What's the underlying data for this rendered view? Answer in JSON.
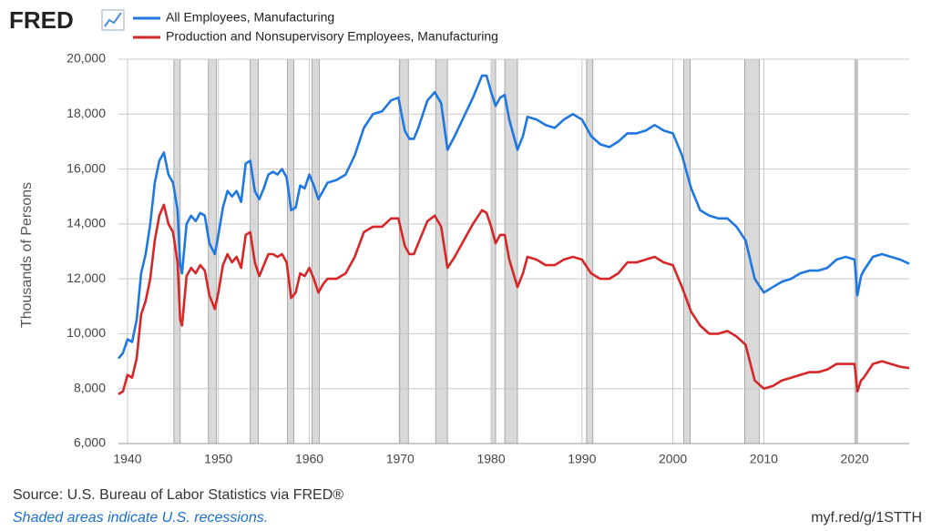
{
  "chart_data": {
    "type": "line",
    "logo": "FRED",
    "ylabel": "Thousands of Persons",
    "source": "Source: U.S. Bureau of Labor Statistics via FRED®",
    "note": "Shaded areas indicate U.S. recessions.",
    "url": "myf.red/g/1STTH",
    "grid": true,
    "xlim": [
      1939,
      2026
    ],
    "ylim": [
      6000,
      20000
    ],
    "xticks": [
      1940,
      1950,
      1960,
      1970,
      1980,
      1990,
      2000,
      2010,
      2020
    ],
    "yticks": [
      {
        "value": 6000,
        "label": "6,000"
      },
      {
        "value": 8000,
        "label": "8,000"
      },
      {
        "value": 10000,
        "label": "10,000"
      },
      {
        "value": 12000,
        "label": "12,000"
      },
      {
        "value": 14000,
        "label": "14,000"
      },
      {
        "value": 16000,
        "label": "16,000"
      },
      {
        "value": 18000,
        "label": "18,000"
      },
      {
        "value": 20000,
        "label": "20,000"
      }
    ],
    "recessions": [
      [
        1945.1,
        1945.8
      ],
      [
        1948.9,
        1949.8
      ],
      [
        1953.5,
        1954.4
      ],
      [
        1957.6,
        1958.3
      ],
      [
        1960.3,
        1961.1
      ],
      [
        1969.9,
        1970.9
      ],
      [
        1973.9,
        1975.2
      ],
      [
        1980.0,
        1980.5
      ],
      [
        1981.5,
        1982.9
      ],
      [
        1990.5,
        1991.2
      ],
      [
        2001.2,
        2001.9
      ],
      [
        2007.9,
        2009.5
      ],
      [
        2020.1,
        2020.3
      ]
    ],
    "x": [
      1939,
      1939.5,
      1940,
      1940.5,
      1941,
      1941.5,
      1942,
      1942.5,
      1943,
      1943.5,
      1944,
      1944.5,
      1945,
      1945.5,
      1945.8,
      1946,
      1946.5,
      1947,
      1947.5,
      1948,
      1948.5,
      1949,
      1949.6,
      1950,
      1950.5,
      1951,
      1951.5,
      1952,
      1952.5,
      1953,
      1953.5,
      1954,
      1954.5,
      1955,
      1955.5,
      1956,
      1956.5,
      1957,
      1957.5,
      1958,
      1958.5,
      1959,
      1959.5,
      1960,
      1960.5,
      1961,
      1961.5,
      1962,
      1963,
      1964,
      1965,
      1966,
      1967,
      1968,
      1969,
      1969.8,
      1970.5,
      1971,
      1971.5,
      1972,
      1973,
      1973.8,
      1974.5,
      1975.2,
      1976,
      1977,
      1978,
      1979,
      1979.5,
      1980,
      1980.5,
      1981,
      1981.5,
      1982,
      1982.9,
      1983.5,
      1984,
      1985,
      1986,
      1987,
      1988,
      1989,
      1990,
      1991,
      1992,
      1993,
      1994,
      1995,
      1996,
      1997,
      1998,
      1999,
      2000,
      2001,
      2002,
      2003,
      2004,
      2005,
      2006,
      2007,
      2008,
      2009,
      2010,
      2011,
      2012,
      2013,
      2014,
      2015,
      2016,
      2017,
      2018,
      2019,
      2020,
      2020.3,
      2020.7,
      2021,
      2022,
      2023,
      2024,
      2025,
      2026
    ],
    "series": [
      {
        "name": "All Employees, Manufacturing",
        "color": "#1f77e0",
        "values": [
          9100,
          9300,
          9800,
          9700,
          10500,
          12200,
          12900,
          14000,
          15500,
          16300,
          16600,
          15800,
          15500,
          14500,
          12500,
          12200,
          14000,
          14300,
          14100,
          14400,
          14300,
          13300,
          12900,
          13600,
          14600,
          15200,
          15000,
          15200,
          14800,
          16200,
          16300,
          15200,
          14900,
          15300,
          15800,
          15900,
          15800,
          16000,
          15700,
          14500,
          14600,
          15400,
          15300,
          15800,
          15400,
          14900,
          15200,
          15500,
          15600,
          15800,
          16500,
          17500,
          18000,
          18100,
          18500,
          18600,
          17400,
          17100,
          17100,
          17500,
          18500,
          18800,
          18400,
          16700,
          17200,
          17900,
          18600,
          19400,
          19400,
          18800,
          18300,
          18600,
          18700,
          17800,
          16700,
          17200,
          17900,
          17800,
          17600,
          17500,
          17800,
          18000,
          17800,
          17200,
          16900,
          16800,
          17000,
          17300,
          17300,
          17400,
          17600,
          17400,
          17300,
          16500,
          15300,
          14500,
          14300,
          14200,
          14200,
          13900,
          13400,
          12000,
          11500,
          11700,
          11900,
          12000,
          12200,
          12300,
          12300,
          12400,
          12700,
          12800,
          12700,
          11400,
          12100,
          12300,
          12800,
          12900,
          12800,
          12700,
          12550
        ]
      },
      {
        "name": "Production and Nonsupervisory Employees, Manufacturing",
        "color": "#d62728",
        "values": [
          7800,
          7900,
          8500,
          8400,
          9100,
          10700,
          11200,
          12000,
          13400,
          14300,
          14700,
          14000,
          13700,
          12600,
          10500,
          10300,
          12100,
          12400,
          12200,
          12500,
          12300,
          11400,
          10900,
          11500,
          12500,
          12900,
          12600,
          12800,
          12400,
          13600,
          13700,
          12600,
          12100,
          12500,
          12900,
          12900,
          12800,
          12900,
          12600,
          11300,
          11500,
          12200,
          12100,
          12400,
          12000,
          11500,
          11800,
          12000,
          12000,
          12200,
          12800,
          13700,
          13900,
          13900,
          14200,
          14200,
          13200,
          12900,
          12900,
          13300,
          14100,
          14300,
          13900,
          12400,
          12800,
          13400,
          14000,
          14500,
          14400,
          13900,
          13300,
          13600,
          13600,
          12700,
          11700,
          12200,
          12800,
          12700,
          12500,
          12500,
          12700,
          12800,
          12700,
          12200,
          12000,
          12000,
          12200,
          12600,
          12600,
          12700,
          12800,
          12600,
          12500,
          11700,
          10800,
          10300,
          10000,
          10000,
          10100,
          9900,
          9600,
          8300,
          8000,
          8100,
          8300,
          8400,
          8500,
          8600,
          8600,
          8700,
          8900,
          8900,
          8900,
          7900,
          8300,
          8400,
          8900,
          9000,
          8900,
          8800,
          8750
        ]
      }
    ]
  }
}
